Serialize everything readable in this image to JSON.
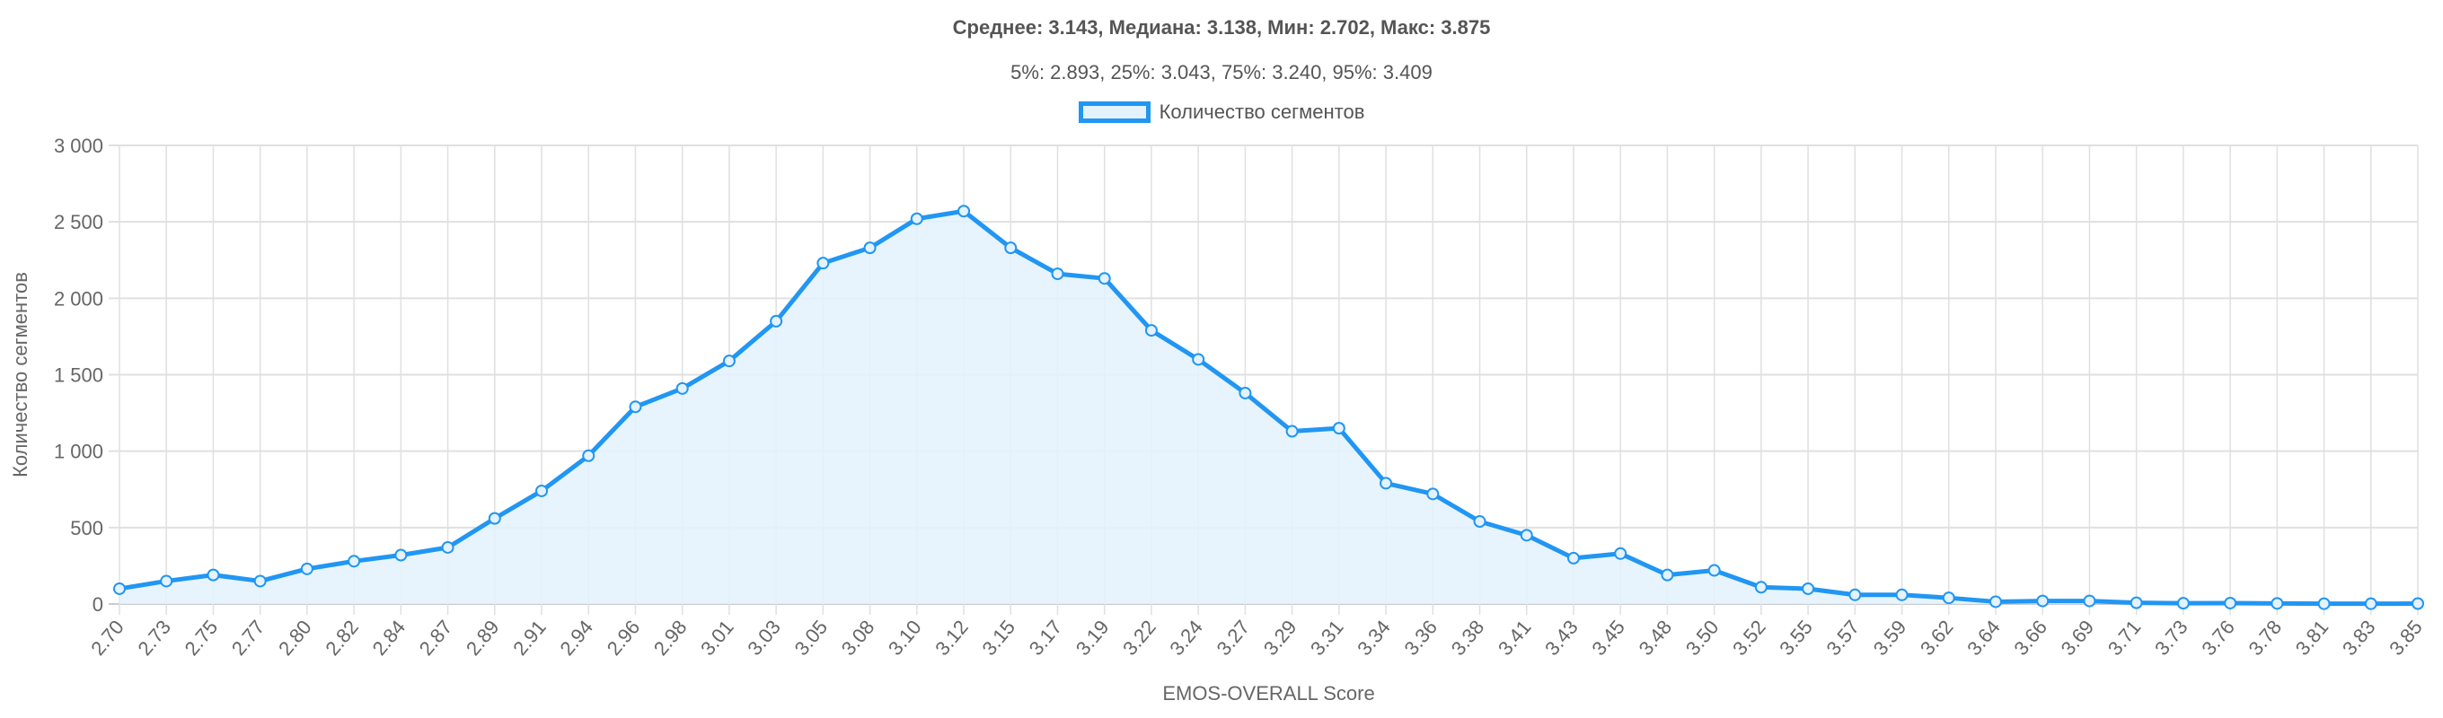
{
  "chart_data": {
    "type": "line",
    "title": "Среднее: 3.143, Медиана: 3.138, Мин: 2.702, Макс: 3.875",
    "subtitle": "5%: 2.893, 25%: 3.043, 75%: 3.240, 95%: 3.409",
    "legend": {
      "label": "Количество сегментов",
      "placement": "top-center"
    },
    "xlabel": "EMOS-OVERALL Score",
    "ylabel": "Количество сегментов",
    "ylim": [
      0,
      3000
    ],
    "yticks": [
      0,
      500,
      1000,
      1500,
      2000,
      2500,
      3000
    ],
    "ytick_labels": [
      "0",
      "500",
      "1 000",
      "1 500",
      "2 000",
      "2 500",
      "3 000"
    ],
    "grid": true,
    "colors": {
      "line": "#2196f3",
      "fill": "#e3f2fd",
      "grid": "#e0e0e0"
    },
    "categories": [
      "2.70",
      "2.73",
      "2.75",
      "2.77",
      "2.80",
      "2.82",
      "2.84",
      "2.87",
      "2.89",
      "2.91",
      "2.94",
      "2.96",
      "2.98",
      "3.01",
      "3.03",
      "3.05",
      "3.08",
      "3.10",
      "3.12",
      "3.15",
      "3.17",
      "3.19",
      "3.22",
      "3.24",
      "3.27",
      "3.29",
      "3.31",
      "3.34",
      "3.36",
      "3.38",
      "3.41",
      "3.43",
      "3.45",
      "3.48",
      "3.50",
      "3.52",
      "3.55",
      "3.57",
      "3.59",
      "3.62",
      "3.64",
      "3.66",
      "3.69",
      "3.71",
      "3.73",
      "3.76",
      "3.78",
      "3.81",
      "3.83",
      "3.85"
    ],
    "series": [
      {
        "name": "Количество сегментов",
        "values": [
          100,
          150,
          190,
          150,
          230,
          280,
          320,
          370,
          560,
          740,
          970,
          1290,
          1410,
          1590,
          1850,
          2230,
          2330,
          2520,
          2570,
          2330,
          2160,
          2130,
          1790,
          1600,
          1380,
          1130,
          1150,
          790,
          720,
          540,
          450,
          300,
          330,
          190,
          220,
          110,
          100,
          60,
          60,
          40,
          15,
          20,
          20,
          8,
          5,
          6,
          4,
          2,
          2,
          3
        ]
      }
    ]
  }
}
